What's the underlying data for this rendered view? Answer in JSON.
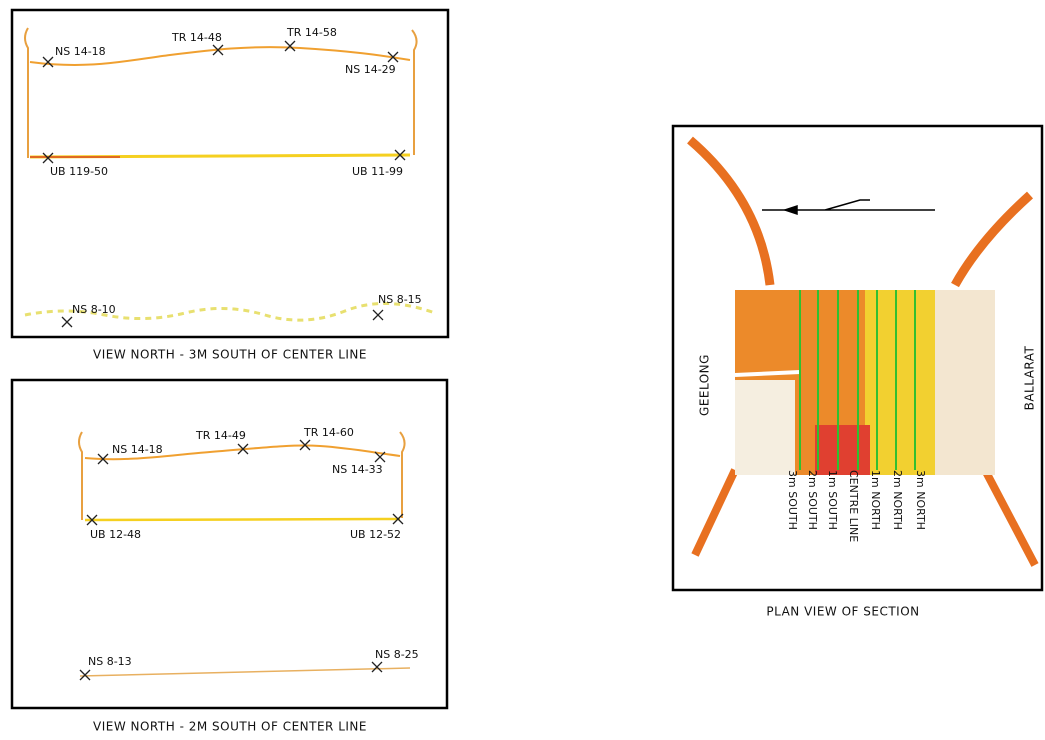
{
  "views": [
    {
      "caption": "VIEW NORTH - 3M SOUTH OF CENTER LINE",
      "points": [
        {
          "label": "NS 14-18"
        },
        {
          "label": "TR 14-48"
        },
        {
          "label": "TR 14-58"
        },
        {
          "label": "NS 14-29"
        },
        {
          "label": "UB 119-50"
        },
        {
          "label": "UB 11-99"
        },
        {
          "label": "NS 8-10"
        },
        {
          "label": "NS 8-15"
        }
      ]
    },
    {
      "caption": "VIEW NORTH - 2M SOUTH OF CENTER LINE",
      "points": [
        {
          "label": "NS 14-18"
        },
        {
          "label": "TR 14-49"
        },
        {
          "label": "TR 14-60"
        },
        {
          "label": "NS 14-33"
        },
        {
          "label": "UB 12-48"
        },
        {
          "label": "UB 12-52"
        },
        {
          "label": "NS 8-13"
        },
        {
          "label": "NS 8-25"
        }
      ]
    }
  ],
  "plan": {
    "caption": "PLAN VIEW OF SECTION",
    "west_label": "GEELONG",
    "east_label": "BALLARAT",
    "section_lines": [
      "3m SOUTH",
      "2m SOUTH",
      "1m SOUTH",
      "CENTRE LINE",
      "1m NORTH",
      "2m NORTH",
      "3m NORTH"
    ]
  }
}
